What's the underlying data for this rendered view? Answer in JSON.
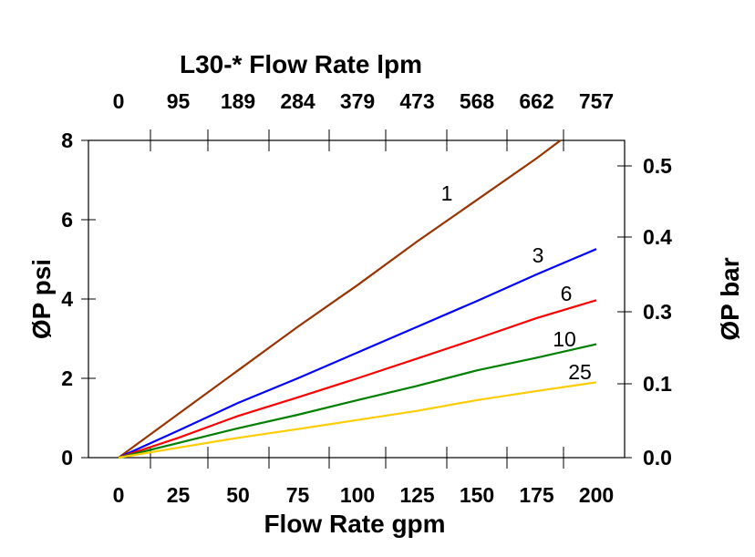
{
  "chart_data": {
    "type": "line",
    "title": "L30-* Flow Rate lpm",
    "xlabel": "Flow Rate gpm",
    "ylabel": "ØP psi",
    "y2label": "ØP bar",
    "xlim": [
      -12.5,
      212.5
    ],
    "ylim": [
      0,
      8
    ],
    "x_ticks": [
      "0",
      "25",
      "50",
      "75",
      "100",
      "125",
      "150",
      "175",
      "200"
    ],
    "x_tick_values": [
      0,
      25,
      50,
      75,
      100,
      125,
      150,
      175,
      200
    ],
    "top_ticks": [
      "0",
      "95",
      "189",
      "284",
      "379",
      "473",
      "568",
      "662",
      "757"
    ],
    "y_ticks": [
      "0",
      "2",
      "4",
      "6",
      "8"
    ],
    "y_tick_values": [
      0,
      2,
      4,
      6,
      8
    ],
    "y2_ticks": [
      "0.0",
      "0.1",
      "0.3",
      "0.4",
      "0.5"
    ],
    "grid": false,
    "series": [
      {
        "name": "1",
        "color": "#993300",
        "x": [
          0,
          25,
          50,
          75,
          100,
          125,
          150,
          175,
          185
        ],
        "y": [
          0,
          1.1,
          2.2,
          3.3,
          4.35,
          5.45,
          6.5,
          7.55,
          8.0
        ]
      },
      {
        "name": "3",
        "color": "#0000ff",
        "x": [
          0,
          25,
          50,
          75,
          100,
          125,
          150,
          175,
          200
        ],
        "y": [
          0,
          0.68,
          1.38,
          2.0,
          2.65,
          3.3,
          3.95,
          4.62,
          5.26
        ]
      },
      {
        "name": "6",
        "color": "#ff0000",
        "x": [
          0,
          25,
          50,
          75,
          100,
          125,
          150,
          175,
          200
        ],
        "y": [
          0,
          0.5,
          1.05,
          1.52,
          2.0,
          2.5,
          3.0,
          3.52,
          3.97
        ]
      },
      {
        "name": "10",
        "color": "#008000",
        "x": [
          0,
          25,
          50,
          75,
          100,
          125,
          150,
          175,
          200
        ],
        "y": [
          0,
          0.37,
          0.74,
          1.08,
          1.45,
          1.81,
          2.2,
          2.52,
          2.86
        ]
      },
      {
        "name": "25",
        "color": "#ffcc00",
        "x": [
          0,
          25,
          50,
          75,
          100,
          125,
          150,
          175,
          200
        ],
        "y": [
          0,
          0.25,
          0.5,
          0.72,
          0.95,
          1.18,
          1.45,
          1.68,
          1.9
        ]
      }
    ]
  }
}
